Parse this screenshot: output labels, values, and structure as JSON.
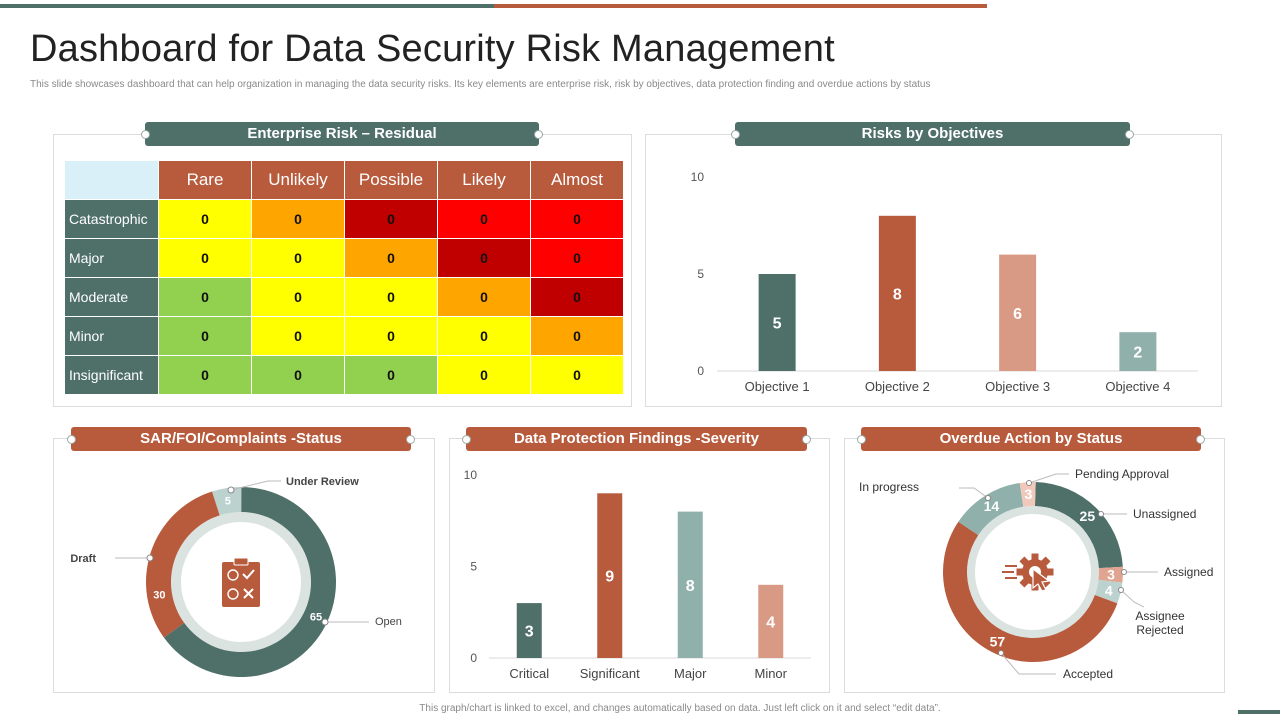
{
  "header": {
    "title": "Dashboard for Data Security Risk Management",
    "subtitle": "This slide showcases dashboard that can help organization in managing  the data security risks. Its key elements  are enterprise risk, risk by objectives, data protection finding and overdue actions by status"
  },
  "footer": {
    "note": "This graph/chart is linked to excel, and changes automatically based on data. Just left click on it and select “edit data”."
  },
  "colors": {
    "teal": "#4f6f69",
    "rust": "#b85a3c",
    "light_rust": "#d99a85",
    "light_teal": "#8fb0ab",
    "pale": "#dbe7e4"
  },
  "risk_matrix": {
    "title": "Enterprise Risk – Residual",
    "columns": [
      "Rare",
      "Unlikely",
      "Possible",
      "Likely",
      "Almost"
    ],
    "rows": [
      {
        "label": "Catastrophic",
        "values": [
          "0",
          "0",
          "0",
          "0",
          "0"
        ],
        "colors": [
          "#ffff00",
          "#ffa500",
          "#c00000",
          "#ff0000",
          "#ff0000"
        ]
      },
      {
        "label": "Major",
        "values": [
          "0",
          "0",
          "0",
          "0",
          "0"
        ],
        "colors": [
          "#ffff00",
          "#ffff00",
          "#ffa500",
          "#c00000",
          "#ff0000"
        ]
      },
      {
        "label": "Moderate",
        "values": [
          "0",
          "0",
          "0",
          "0",
          "0"
        ],
        "colors": [
          "#92d050",
          "#ffff00",
          "#ffff00",
          "#ffa500",
          "#c00000"
        ]
      },
      {
        "label": "Minor",
        "values": [
          "0",
          "0",
          "0",
          "0",
          "0"
        ],
        "colors": [
          "#92d050",
          "#ffff00",
          "#ffff00",
          "#ffff00",
          "#ffa500"
        ]
      },
      {
        "label": "Insignificant",
        "values": [
          "0",
          "0",
          "0",
          "0",
          "0"
        ],
        "colors": [
          "#92d050",
          "#92d050",
          "#92d050",
          "#ffff00",
          "#ffff00"
        ]
      }
    ]
  },
  "objectives": {
    "title": "Risks by Objectives"
  },
  "sar": {
    "title": "SAR/FOI/Complaints -Status",
    "icon": "clipboard-icon"
  },
  "findings": {
    "title": "Data Protection Findings -Severity"
  },
  "overdue": {
    "title": "Overdue Action by Status",
    "icon": "gear-cursor-icon"
  },
  "chart_data": [
    {
      "id": "objectives",
      "type": "bar",
      "title": "Risks by Objectives",
      "categories": [
        "Objective 1",
        "Objective 2",
        "Objective 3",
        "Objective 4"
      ],
      "values": [
        5,
        8,
        6,
        2
      ],
      "colors": [
        "#4f6f69",
        "#b85a3c",
        "#d99a85",
        "#8fb0ab"
      ],
      "ylim": [
        0,
        10
      ],
      "yticks": [
        0,
        5,
        10
      ]
    },
    {
      "id": "findings",
      "type": "bar",
      "title": "Data Protection Findings -Severity",
      "categories": [
        "Critical",
        "Significant",
        "Major",
        "Minor"
      ],
      "values": [
        3,
        9,
        8,
        4
      ],
      "colors": [
        "#4f6f69",
        "#b85a3c",
        "#8fb0ab",
        "#d99a85"
      ],
      "ylim": [
        0,
        10
      ],
      "yticks": [
        0,
        5,
        10
      ]
    },
    {
      "id": "sar",
      "type": "pie",
      "title": "SAR/FOI/Complaints -Status",
      "labels": [
        "Open",
        "Draft",
        "Under Review"
      ],
      "values": [
        65,
        30,
        5
      ],
      "colors": [
        "#4f6f69",
        "#b85a3c",
        "#bcd2ce"
      ]
    },
    {
      "id": "overdue",
      "type": "pie",
      "title": "Overdue Action by Status",
      "labels": [
        "Unassigned",
        "Assigned",
        "Assignee Rejected",
        "Accepted",
        "In progress",
        "Pending Approval"
      ],
      "values": [
        25,
        3,
        4,
        57,
        14,
        3
      ],
      "colors": [
        "#4f6f69",
        "#e0a490",
        "#bcd2ce",
        "#b85a3c",
        "#8fb0ab",
        "#f0c9bb"
      ]
    }
  ]
}
